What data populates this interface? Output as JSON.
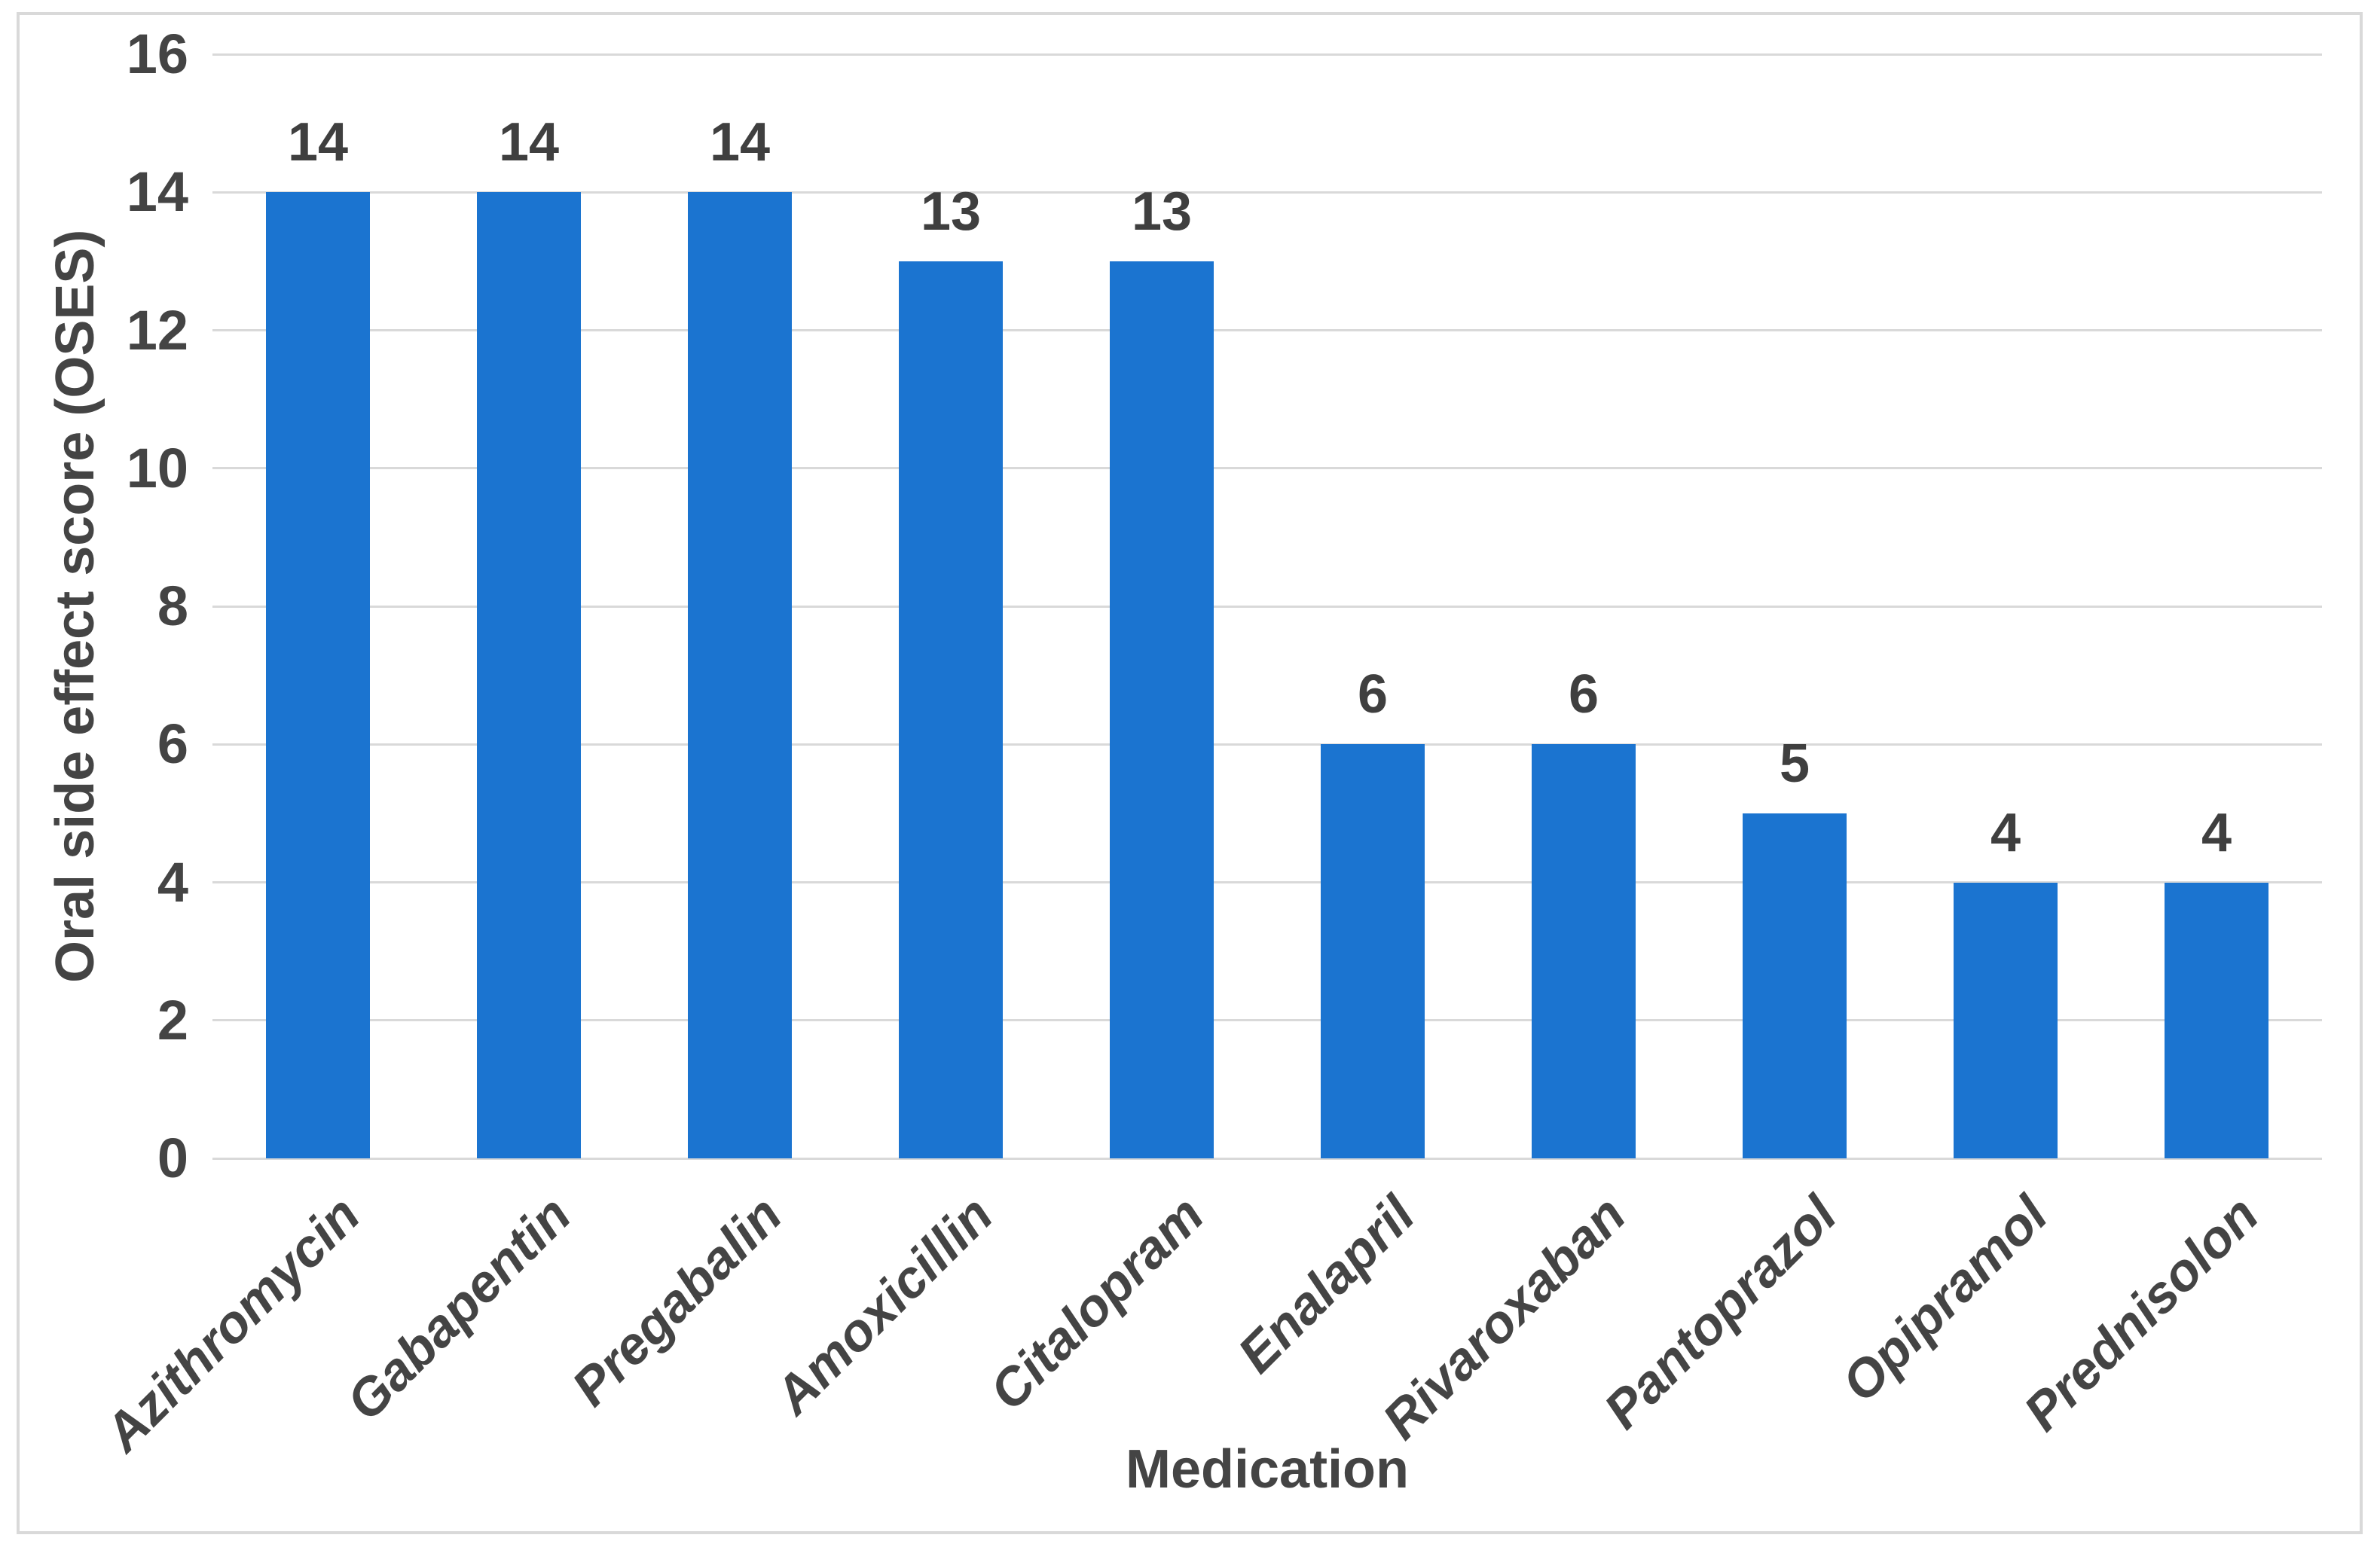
{
  "figure": {
    "background": "#FFFFFF",
    "border_color": "#D9D9D9"
  },
  "chart_data": {
    "type": "bar",
    "title": "",
    "categories": [
      "Azithromycin",
      "Gabapentin",
      "Pregabalin",
      "Amoxicillin",
      "Citalopram",
      "Enalapril",
      "Rivaroxaban",
      "Pantoprazol",
      "Opipramol",
      "Prednisolon"
    ],
    "values": [
      14,
      14,
      14,
      13,
      13,
      6,
      6,
      5,
      4,
      4
    ],
    "data_labels": [
      "14",
      "14",
      "14",
      "13",
      "13",
      "6",
      "6",
      "5",
      "4",
      "4"
    ],
    "xlabel": "Medication",
    "ylabel": "Oral side effect score (OSES)",
    "ylim": [
      0,
      16
    ],
    "yticks": [
      0,
      2,
      4,
      6,
      8,
      10,
      12,
      14,
      16
    ],
    "grid": "horizontal",
    "legend_position": "none",
    "bar_orientation": "vertical",
    "category_label_rotation_deg": 45,
    "colors": {
      "bar": "#1B74D0",
      "gridline": "#D9D9D9",
      "border": "#D9D9D9",
      "axis_text": "#444444",
      "data_label_text": "#3F3F3F"
    }
  }
}
